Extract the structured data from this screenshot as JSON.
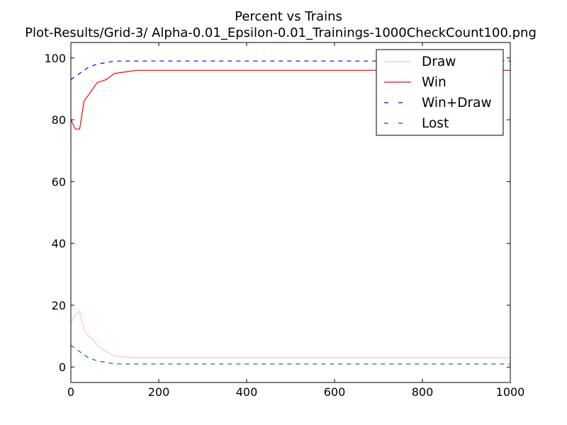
{
  "chart_data": {
    "type": "line",
    "title": "Percent vs Trains",
    "subtitle": "Plot-Results/Grid-3/ Alpha-0.01_Epsilon-0.01_Trainings-1000CheckCount100.png",
    "xlabel": "",
    "ylabel": "",
    "xlim": [
      0,
      1000
    ],
    "ylim": [
      -5,
      105
    ],
    "xticks": [
      0,
      200,
      400,
      600,
      800,
      1000
    ],
    "yticks": [
      0,
      20,
      40,
      60,
      80,
      100
    ],
    "grid": false,
    "legend_position": "top-right",
    "series": [
      {
        "name": "Draw",
        "color": "#ffc0cb",
        "style": "solid",
        "x": [
          0,
          10,
          20,
          30,
          40,
          50,
          60,
          80,
          100,
          150,
          200,
          300,
          400,
          500,
          600,
          700,
          800,
          900,
          1000
        ],
        "values": [
          14,
          17,
          18,
          12,
          10,
          9,
          7,
          5,
          3.5,
          3,
          3,
          3,
          3,
          3,
          3,
          3,
          3,
          3,
          3
        ]
      },
      {
        "name": "Win",
        "color": "#ff0000",
        "style": "solid",
        "x": [
          0,
          10,
          20,
          30,
          40,
          50,
          60,
          80,
          100,
          150,
          200,
          300,
          400,
          500,
          600,
          700,
          800,
          900,
          1000
        ],
        "values": [
          80,
          77,
          77,
          86,
          88,
          90,
          92,
          93,
          95,
          96,
          96,
          96,
          96,
          96,
          96,
          96,
          96,
          96,
          96
        ]
      },
      {
        "name": "Win+Draw",
        "color": "#0000ff",
        "style": "dashed",
        "x": [
          0,
          10,
          20,
          30,
          40,
          50,
          60,
          80,
          100,
          150,
          200,
          300,
          400,
          500,
          600,
          700,
          800,
          900,
          1000
        ],
        "values": [
          93,
          94,
          95,
          96,
          97,
          97.5,
          98,
          98.5,
          99,
          99,
          99,
          99,
          99,
          99,
          99,
          99,
          99,
          99,
          99
        ]
      },
      {
        "name": "Lost",
        "color": "#008000",
        "style": "dashed",
        "x": [
          0,
          10,
          20,
          30,
          40,
          50,
          60,
          80,
          100,
          150,
          200,
          300,
          400,
          500,
          600,
          700,
          800,
          900,
          1000
        ],
        "values": [
          7,
          6,
          5,
          4,
          3,
          2.5,
          2,
          1.5,
          1,
          1,
          1,
          1,
          1,
          1,
          1,
          1,
          1,
          1,
          1
        ]
      }
    ]
  }
}
